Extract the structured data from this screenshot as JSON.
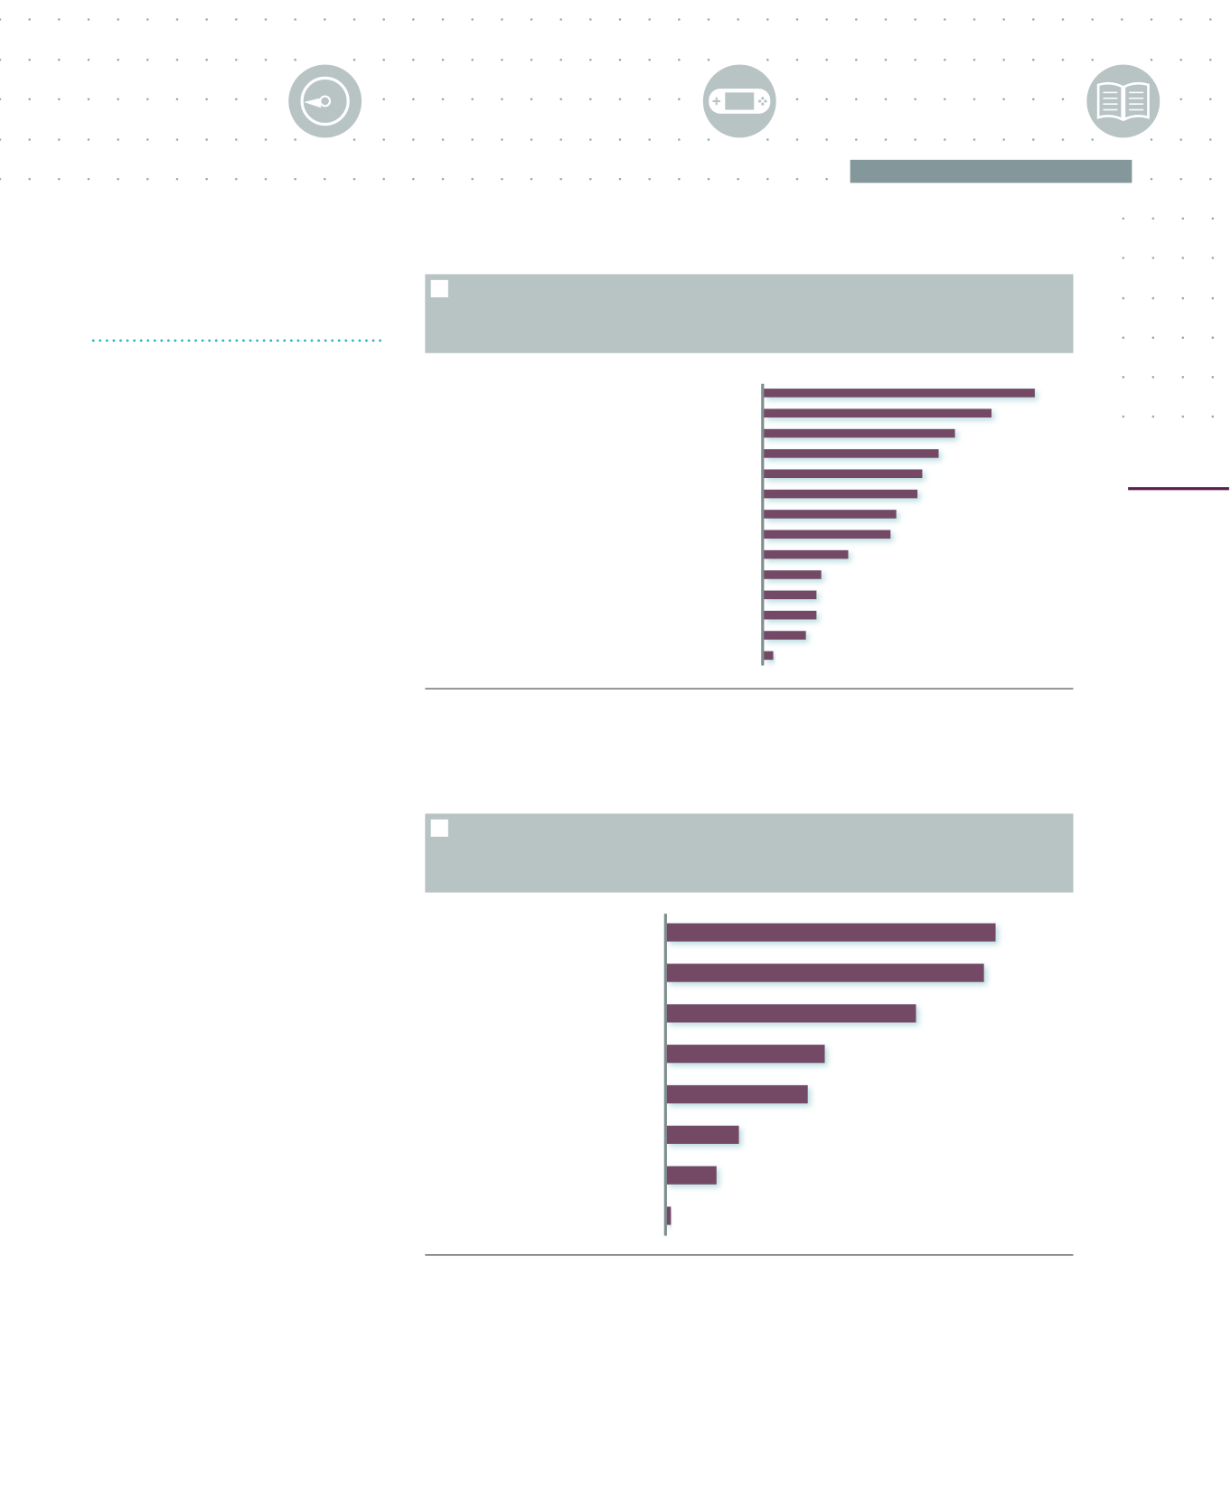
{
  "chart_data": [
    {
      "type": "bar",
      "orientation": "horizontal",
      "color": "#734a66",
      "values": [
        282,
        237,
        199,
        182,
        165,
        160,
        138,
        132,
        88,
        60,
        55,
        55,
        44,
        10
      ],
      "xlim": [
        0,
        300
      ]
    },
    {
      "type": "bar",
      "orientation": "horizontal",
      "color": "#734a66",
      "values": [
        368,
        355,
        279,
        177,
        158,
        81,
        56,
        5
      ],
      "xlim": [
        0,
        400
      ]
    }
  ]
}
